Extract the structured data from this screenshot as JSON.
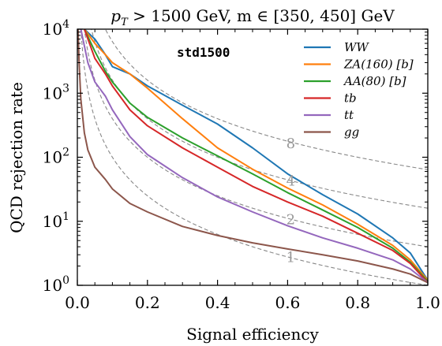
{
  "chart_data": {
    "type": "line",
    "title": "p_T > 1500 GeV, m ∈ [350, 450] GeV",
    "title_parts": {
      "p": "p",
      "sub": "T",
      "rest": " > 1500 GeV, m ∈ [350, 450] GeV"
    },
    "xlabel": "Signal efficiency",
    "ylabel": "QCD rejection rate",
    "xlim": [
      0.0,
      1.0
    ],
    "ylim": [
      1,
      10000
    ],
    "yscale": "log",
    "x_ticks": [
      0.0,
      0.2,
      0.4,
      0.6,
      0.8,
      1.0
    ],
    "x_tick_labels": [
      "0.0",
      "0.2",
      "0.4",
      "0.6",
      "0.8",
      "1.0"
    ],
    "y_ticks": [
      1,
      10,
      100,
      1000,
      10000
    ],
    "y_tick_labels": [
      {
        "base": "10",
        "exp": "0"
      },
      {
        "base": "10",
        "exp": "1"
      },
      {
        "base": "10",
        "exp": "2"
      },
      {
        "base": "10",
        "exp": "3"
      },
      {
        "base": "10",
        "exp": "4"
      }
    ],
    "grid": false,
    "legend_position": "top-right",
    "annotation": "std1500",
    "significance_curves": [
      {
        "label": "8",
        "k": 8,
        "label_x": 0.6,
        "label_y": 170
      },
      {
        "label": "4",
        "k": 4,
        "label_x": 0.6,
        "label_y": 44
      },
      {
        "label": "2",
        "k": 2,
        "label_x": 0.6,
        "label_y": 11
      },
      {
        "label": "1",
        "k": 1,
        "label_x": 0.6,
        "label_y": 2.8
      }
    ],
    "series": [
      {
        "name": "WW",
        "color": "#1f77b4",
        "x": [
          0.02,
          0.05,
          0.08,
          0.1,
          0.15,
          0.2,
          0.3,
          0.4,
          0.5,
          0.6,
          0.7,
          0.8,
          0.9,
          0.95,
          1.0
        ],
        "y": [
          10000,
          7000,
          4000,
          2600,
          2000,
          1300,
          650,
          330,
          140,
          55,
          26,
          13,
          5.5,
          3.2,
          1.2
        ]
      },
      {
        "name": "ZA(160) [b]",
        "color": "#ff7f0e",
        "x": [
          0.02,
          0.05,
          0.08,
          0.1,
          0.15,
          0.2,
          0.3,
          0.4,
          0.5,
          0.6,
          0.7,
          0.8,
          0.9,
          0.95,
          1.0
        ],
        "y": [
          10000,
          6000,
          4000,
          3000,
          2000,
          1200,
          400,
          140,
          65,
          33,
          18,
          9,
          4.2,
          2.5,
          1.2
        ]
      },
      {
        "name": "AA(80) [b]",
        "color": "#2ca02c",
        "x": [
          0.02,
          0.05,
          0.08,
          0.1,
          0.15,
          0.2,
          0.3,
          0.4,
          0.5,
          0.6,
          0.7,
          0.8,
          0.9,
          0.95,
          1.0
        ],
        "y": [
          10000,
          4500,
          2200,
          1500,
          700,
          420,
          200,
          105,
          55,
          28,
          15,
          8,
          3.8,
          2.3,
          1.15
        ]
      },
      {
        "name": "tb",
        "color": "#d62728",
        "x": [
          0.02,
          0.05,
          0.08,
          0.1,
          0.15,
          0.2,
          0.3,
          0.4,
          0.5,
          0.6,
          0.7,
          0.8,
          0.9,
          0.95,
          1.0
        ],
        "y": [
          10000,
          3500,
          2000,
          1300,
          550,
          310,
          140,
          70,
          35,
          20,
          12,
          6.5,
          3.5,
          2.2,
          1.1
        ]
      },
      {
        "name": "tt",
        "color": "#9467bd",
        "x": [
          0.01,
          0.03,
          0.05,
          0.08,
          0.1,
          0.15,
          0.2,
          0.3,
          0.4,
          0.5,
          0.6,
          0.7,
          0.8,
          0.9,
          0.95,
          1.0
        ],
        "y": [
          10000,
          3000,
          1500,
          900,
          550,
          210,
          110,
          48,
          24,
          14,
          8.5,
          5.5,
          3.8,
          2.5,
          1.8,
          1.1
        ]
      },
      {
        "name": "gg",
        "color": "#8c564b",
        "x": [
          0.002,
          0.005,
          0.01,
          0.02,
          0.03,
          0.05,
          0.08,
          0.1,
          0.15,
          0.2,
          0.3,
          0.4,
          0.5,
          0.6,
          0.7,
          0.8,
          0.9,
          0.95,
          1.0
        ],
        "y": [
          10000,
          3000,
          800,
          240,
          130,
          70,
          45,
          32,
          19,
          14,
          8.3,
          6,
          4.6,
          3.7,
          3.0,
          2.4,
          1.8,
          1.5,
          1.1
        ]
      }
    ]
  }
}
